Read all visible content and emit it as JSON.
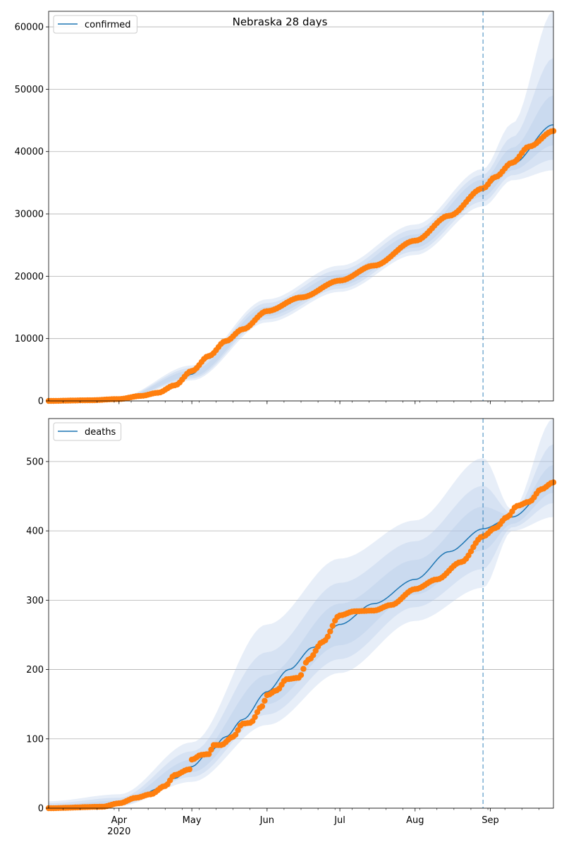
{
  "figure": {
    "title": "Nebraska 28 days"
  },
  "colors": {
    "fit": "#1f77b4",
    "observed": "#ff7f0e",
    "band": "#aec7e8",
    "grid": "#b0b0b0",
    "forecast_line": "#1f77b4"
  },
  "chart_data": [
    {
      "type": "line",
      "title": "Nebraska 28 days",
      "legend": {
        "label": "confirmed",
        "placement": "top-left"
      },
      "x_axis": {
        "range": [
          "2020-03-03",
          "2020-09-27"
        ],
        "ticks": [
          {
            "date": "2020-04-01",
            "label": "Apr",
            "sublabel": "2020"
          },
          {
            "date": "2020-05-01",
            "label": "May"
          },
          {
            "date": "2020-06-01",
            "label": "Jun"
          },
          {
            "date": "2020-07-01",
            "label": "Jul"
          },
          {
            "date": "2020-08-01",
            "label": "Aug"
          },
          {
            "date": "2020-09-01",
            "label": "Sep"
          }
        ]
      },
      "y_axis": {
        "range": [
          0,
          62500
        ],
        "ticks": [
          0,
          10000,
          20000,
          30000,
          40000,
          50000,
          60000
        ]
      },
      "grid": "horizontal",
      "forecast_start": "2020-08-29",
      "fit_points": [
        [
          "2020-03-03",
          0
        ],
        [
          "2020-03-20",
          100
        ],
        [
          "2020-04-01",
          300
        ],
        [
          "2020-04-10",
          700
        ],
        [
          "2020-04-17",
          1200
        ],
        [
          "2020-04-24",
          2300
        ],
        [
          "2020-05-01",
          4300
        ],
        [
          "2020-05-08",
          6800
        ],
        [
          "2020-05-15",
          9300
        ],
        [
          "2020-05-22",
          11300
        ],
        [
          "2020-06-01",
          14300
        ],
        [
          "2020-06-15",
          16700
        ],
        [
          "2020-07-01",
          19200
        ],
        [
          "2020-07-15",
          21500
        ],
        [
          "2020-08-01",
          25500
        ],
        [
          "2020-08-15",
          29500
        ],
        [
          "2020-08-29",
          34200
        ],
        [
          "2020-09-10",
          38000
        ],
        [
          "2020-09-27",
          44300
        ]
      ],
      "observed_points": [
        [
          "2020-03-03",
          0
        ],
        [
          "2020-03-20",
          100
        ],
        [
          "2020-04-01",
          300
        ],
        [
          "2020-04-10",
          800
        ],
        [
          "2020-04-17",
          1300
        ],
        [
          "2020-04-24",
          2500
        ],
        [
          "2020-05-01",
          4800
        ],
        [
          "2020-05-08",
          7200
        ],
        [
          "2020-05-15",
          9600
        ],
        [
          "2020-05-22",
          11500
        ],
        [
          "2020-06-01",
          14400
        ],
        [
          "2020-06-15",
          16600
        ],
        [
          "2020-07-01",
          19300
        ],
        [
          "2020-07-15",
          21700
        ],
        [
          "2020-08-01",
          25700
        ],
        [
          "2020-08-15",
          29700
        ],
        [
          "2020-08-29",
          34100
        ],
        [
          "2020-09-03",
          35900
        ],
        [
          "2020-09-10",
          38200
        ],
        [
          "2020-09-17",
          40800
        ],
        [
          "2020-09-27",
          43300
        ]
      ],
      "bands": [
        {
          "lower": [
            [
              "2020-03-03",
              0
            ],
            [
              "2020-04-01",
              100
            ],
            [
              "2020-05-01",
              3300
            ],
            [
              "2020-06-01",
              12600
            ],
            [
              "2020-07-01",
              17500
            ],
            [
              "2020-08-01",
              23400
            ],
            [
              "2020-08-29",
              31200
            ],
            [
              "2020-09-10",
              35400
            ],
            [
              "2020-09-27",
              37000
            ]
          ],
          "upper": [
            [
              "2020-03-03",
              100
            ],
            [
              "2020-04-01",
              600
            ],
            [
              "2020-05-01",
              5700
            ],
            [
              "2020-06-01",
              16300
            ],
            [
              "2020-07-01",
              21700
            ],
            [
              "2020-08-01",
              28300
            ],
            [
              "2020-08-29",
              37200
            ],
            [
              "2020-09-10",
              44500
            ],
            [
              "2020-09-27",
              62500
            ]
          ]
        },
        {
          "lower": [
            [
              "2020-03-03",
              0
            ],
            [
              "2020-04-01",
              150
            ],
            [
              "2020-05-01",
              3600
            ],
            [
              "2020-06-01",
              13100
            ],
            [
              "2020-07-01",
              18000
            ],
            [
              "2020-08-01",
              24000
            ],
            [
              "2020-08-29",
              32000
            ],
            [
              "2020-09-10",
              36200
            ],
            [
              "2020-09-27",
              38700
            ]
          ],
          "upper": [
            [
              "2020-03-03",
              80
            ],
            [
              "2020-04-01",
              500
            ],
            [
              "2020-05-01",
              5300
            ],
            [
              "2020-06-01",
              15700
            ],
            [
              "2020-07-01",
              21000
            ],
            [
              "2020-08-01",
              27500
            ],
            [
              "2020-08-29",
              36300
            ],
            [
              "2020-09-10",
              42300
            ],
            [
              "2020-09-27",
              55000
            ]
          ]
        },
        {
          "lower": [
            [
              "2020-03-03",
              0
            ],
            [
              "2020-04-01",
              200
            ],
            [
              "2020-05-01",
              3900
            ],
            [
              "2020-06-01",
              13600
            ],
            [
              "2020-07-01",
              18500
            ],
            [
              "2020-08-01",
              24600
            ],
            [
              "2020-08-29",
              32800
            ],
            [
              "2020-09-10",
              37000
            ],
            [
              "2020-09-27",
              41000
            ]
          ],
          "upper": [
            [
              "2020-03-03",
              50
            ],
            [
              "2020-04-01",
              400
            ],
            [
              "2020-05-01",
              4900
            ],
            [
              "2020-06-01",
              15100
            ],
            [
              "2020-07-01",
              20300
            ],
            [
              "2020-08-01",
              26700
            ],
            [
              "2020-08-29",
              35500
            ],
            [
              "2020-09-10",
              40600
            ],
            [
              "2020-09-27",
              49000
            ]
          ]
        }
      ]
    },
    {
      "type": "line",
      "legend": {
        "label": "deaths",
        "placement": "top-left"
      },
      "x_axis": {
        "range": [
          "2020-03-03",
          "2020-09-27"
        ],
        "ticks": [
          {
            "date": "2020-04-01",
            "label": "Apr",
            "sublabel": "2020"
          },
          {
            "date": "2020-05-01",
            "label": "May"
          },
          {
            "date": "2020-06-01",
            "label": "Jun"
          },
          {
            "date": "2020-07-01",
            "label": "Jul"
          },
          {
            "date": "2020-08-01",
            "label": "Aug"
          },
          {
            "date": "2020-09-01",
            "label": "Sep"
          }
        ]
      },
      "y_axis": {
        "range": [
          0,
          562
        ],
        "ticks": [
          0,
          100,
          200,
          300,
          400,
          500
        ]
      },
      "grid": "horizontal",
      "forecast_start": "2020-08-29",
      "fit_points": [
        [
          "2020-03-03",
          0
        ],
        [
          "2020-03-25",
          2
        ],
        [
          "2020-04-01",
          8
        ],
        [
          "2020-04-10",
          18
        ],
        [
          "2020-04-17",
          28
        ],
        [
          "2020-04-24",
          43
        ],
        [
          "2020-05-01",
          60
        ],
        [
          "2020-05-08",
          80
        ],
        [
          "2020-05-15",
          103
        ],
        [
          "2020-05-22",
          128
        ],
        [
          "2020-06-01",
          168
        ],
        [
          "2020-06-10",
          200
        ],
        [
          "2020-06-20",
          232
        ],
        [
          "2020-07-01",
          265
        ],
        [
          "2020-07-15",
          295
        ],
        [
          "2020-08-01",
          330
        ],
        [
          "2020-08-15",
          370
        ],
        [
          "2020-08-29",
          403
        ],
        [
          "2020-09-10",
          420
        ],
        [
          "2020-09-27",
          470
        ]
      ],
      "observed_points": [
        [
          "2020-03-03",
          0
        ],
        [
          "2020-03-25",
          2
        ],
        [
          "2020-04-01",
          7
        ],
        [
          "2020-04-08",
          15
        ],
        [
          "2020-04-14",
          20
        ],
        [
          "2020-04-20",
          32
        ],
        [
          "2020-04-24",
          48
        ],
        [
          "2020-04-30",
          56
        ],
        [
          "2020-05-01",
          70
        ],
        [
          "2020-05-05",
          77
        ],
        [
          "2020-05-08",
          78
        ],
        [
          "2020-05-10",
          91
        ],
        [
          "2020-05-13",
          91
        ],
        [
          "2020-05-18",
          103
        ],
        [
          "2020-05-22",
          122
        ],
        [
          "2020-05-25",
          123
        ],
        [
          "2020-05-30",
          147
        ],
        [
          "2020-06-01",
          163
        ],
        [
          "2020-06-05",
          170
        ],
        [
          "2020-06-09",
          186
        ],
        [
          "2020-06-14",
          188
        ],
        [
          "2020-06-18",
          214
        ],
        [
          "2020-06-24",
          240
        ],
        [
          "2020-07-01",
          278
        ],
        [
          "2020-07-07",
          284
        ],
        [
          "2020-07-15",
          285
        ],
        [
          "2020-07-22",
          293
        ],
        [
          "2020-08-01",
          316
        ],
        [
          "2020-08-10",
          330
        ],
        [
          "2020-08-20",
          355
        ],
        [
          "2020-08-29",
          392
        ],
        [
          "2020-09-03",
          404
        ],
        [
          "2020-09-08",
          420
        ],
        [
          "2020-09-12",
          436
        ],
        [
          "2020-09-17",
          442
        ],
        [
          "2020-09-22",
          460
        ],
        [
          "2020-09-27",
          470
        ]
      ],
      "bands": [
        {
          "lower": [
            [
              "2020-03-03",
              0
            ],
            [
              "2020-04-01",
              3
            ],
            [
              "2020-05-01",
              38
            ],
            [
              "2020-06-01",
              120
            ],
            [
              "2020-07-01",
              195
            ],
            [
              "2020-08-01",
              270
            ],
            [
              "2020-08-29",
              318
            ],
            [
              "2020-09-10",
              400
            ],
            [
              "2020-09-27",
              420
            ]
          ],
          "upper": [
            [
              "2020-03-03",
              10
            ],
            [
              "2020-04-01",
              20
            ],
            [
              "2020-05-01",
              95
            ],
            [
              "2020-06-01",
              265
            ],
            [
              "2020-07-01",
              360
            ],
            [
              "2020-08-01",
              415
            ],
            [
              "2020-08-29",
              505
            ],
            [
              "2020-09-10",
              430
            ],
            [
              "2020-09-27",
              562
            ]
          ]
        },
        {
          "lower": [
            [
              "2020-03-03",
              0
            ],
            [
              "2020-04-01",
              4
            ],
            [
              "2020-05-01",
              45
            ],
            [
              "2020-06-01",
              135
            ],
            [
              "2020-07-01",
              215
            ],
            [
              "2020-08-01",
              290
            ],
            [
              "2020-08-29",
              345
            ],
            [
              "2020-09-10",
              405
            ],
            [
              "2020-09-27",
              440
            ]
          ],
          "upper": [
            [
              "2020-03-03",
              7
            ],
            [
              "2020-04-01",
              15
            ],
            [
              "2020-05-01",
              82
            ],
            [
              "2020-06-01",
              225
            ],
            [
              "2020-07-01",
              325
            ],
            [
              "2020-08-01",
              385
            ],
            [
              "2020-08-29",
              465
            ],
            [
              "2020-09-10",
              425
            ],
            [
              "2020-09-27",
              525
            ]
          ]
        },
        {
          "lower": [
            [
              "2020-03-03",
              0
            ],
            [
              "2020-04-01",
              5
            ],
            [
              "2020-05-01",
              52
            ],
            [
              "2020-06-01",
              150
            ],
            [
              "2020-07-01",
              235
            ],
            [
              "2020-08-01",
              308
            ],
            [
              "2020-08-29",
              372
            ],
            [
              "2020-09-10",
              410
            ],
            [
              "2020-09-27",
              455
            ]
          ],
          "upper": [
            [
              "2020-03-03",
              4
            ],
            [
              "2020-04-01",
              11
            ],
            [
              "2020-05-01",
              70
            ],
            [
              "2020-06-01",
              192
            ],
            [
              "2020-07-01",
              295
            ],
            [
              "2020-08-01",
              358
            ],
            [
              "2020-08-29",
              435
            ],
            [
              "2020-09-10",
              422
            ],
            [
              "2020-09-27",
              495
            ]
          ]
        }
      ]
    }
  ]
}
